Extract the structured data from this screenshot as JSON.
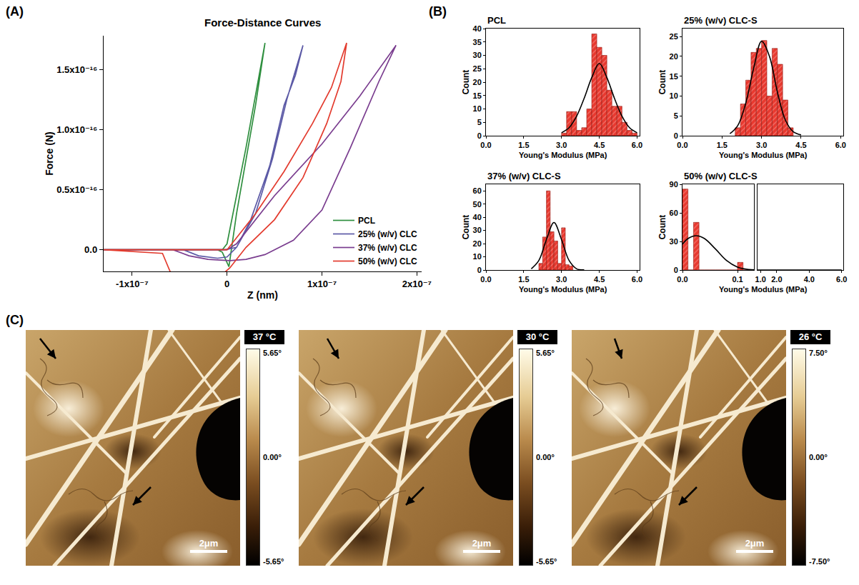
{
  "panel_labels": [
    "(A)",
    "(B)",
    "(C)"
  ],
  "chart_data": [
    {
      "type": "line",
      "title": "Force-Distance Curves",
      "x_label": "Z (nm)",
      "y_label": "Force (N)",
      "xlim": [
        -1.3e-07,
        2.05e-07
      ],
      "ylim": [
        -1.8e-17,
        1.78e-16
      ],
      "xticks": [
        {
          "value": -1e-07,
          "label": "-1x10⁻⁷"
        },
        0,
        {
          "value": 1e-07,
          "label": "1x10⁻⁷"
        },
        {
          "value": 2e-07,
          "label": "2x10⁻⁷"
        }
      ],
      "yticks": [
        {
          "value": 0,
          "label": "0.0"
        },
        {
          "value": 5e-17,
          "label": "0.5x10⁻¹⁶"
        },
        {
          "value": 1e-16,
          "label": "1.0x10⁻¹⁶"
        },
        {
          "value": 1.5e-16,
          "label": "1.5x10⁻¹⁶"
        }
      ],
      "legend": "lower right",
      "series": [
        {
          "name": "PCL",
          "color": "#2f8f3f",
          "x": [
            -1.3e-07,
            -5e-09,
            0,
            2e-08,
            4e-08,
            3e-08,
            1e-08,
            2e-09,
            -5e-09,
            -1e-08,
            -1.3e-07
          ],
          "values": [
            0,
            0,
            5e-18,
            8.5e-17,
            1.72e-16,
            1.2e-16,
            3e-17,
            -1.4e-17,
            -2e-18,
            0,
            0
          ]
        },
        {
          "name": "25% (w/v) CLC",
          "color": "#5c5aa6",
          "x": [
            -1.3e-07,
            -2e-09,
            1e-08,
            3e-08,
            4.8e-08,
            6.3e-08,
            8e-08,
            7.2e-08,
            6e-08,
            4.5e-08,
            2.5e-08,
            1e-08,
            0,
            -1e-08,
            -3e-08,
            -4.6e-08,
            -1.3e-07
          ],
          "values": [
            0,
            0,
            2e-18,
            3e-17,
            7.6e-17,
            1.25e-16,
            1.7e-16,
            1.45e-16,
            1.2e-16,
            7e-17,
            2.5e-17,
            2e-18,
            -6e-18,
            -7e-18,
            -5e-18,
            0,
            0
          ]
        },
        {
          "name": "37% (w/v) CLC",
          "color": "#7a3d8f",
          "x": [
            -1.3e-07,
            0,
            1e-08,
            5e-08,
            1e-07,
            1.4e-07,
            1.78e-07,
            1.6e-07,
            1.3e-07,
            1e-07,
            7e-08,
            4e-08,
            2e-08,
            3e-09,
            -2e-08,
            -4e-08,
            -5.7e-08,
            -1.3e-07
          ],
          "values": [
            0,
            0,
            5e-18,
            4.5e-17,
            8.8e-17,
            1.28e-16,
            1.7e-16,
            1.4e-16,
            8.5e-17,
            3.3e-17,
            8e-18,
            -4e-18,
            -8e-18,
            -9e-18,
            -8e-18,
            -5e-18,
            0,
            0
          ]
        },
        {
          "name": "50% (w/v) CLC",
          "color": "#e33b2e",
          "x": [
            -1.3e-07,
            0,
            3e-08,
            6e-08,
            9e-08,
            1.1e-07,
            1.26e-07,
            1.2e-07,
            1.05e-07,
            8e-08,
            5e-08,
            2e-08,
            3e-09,
            -1e-08,
            -3e-08,
            -5e-08,
            -6e-08,
            -6.8e-08,
            -1.3e-07
          ],
          "values": [
            0,
            0,
            3e-17,
            6.5e-17,
            1.05e-16,
            1.35e-16,
            1.72e-16,
            1.4e-16,
            1.05e-16,
            6e-17,
            2.5e-17,
            2e-18,
            -1.5e-17,
            -2.4e-17,
            -2.6e-17,
            -2.5e-17,
            -1.8e-17,
            -3e-18,
            0
          ]
        }
      ]
    },
    {
      "type": "histogram",
      "title": "PCL",
      "x_label": "Young's Modulus (MPa)",
      "y_label": "Count",
      "color": "#e8392f",
      "bins": [
        3.0,
        3.2,
        3.4,
        3.6,
        3.8,
        4.0,
        4.2,
        4.4,
        4.6,
        4.8,
        5.0,
        5.2,
        5.4,
        5.6,
        5.8,
        6.0
      ],
      "counts": [
        1,
        9,
        9,
        2,
        3,
        10,
        38,
        33,
        30,
        17,
        11,
        11,
        5,
        2,
        1
      ],
      "fit": {
        "color": "#000000",
        "x": [
          3.0,
          3.3,
          3.6,
          3.9,
          4.2,
          4.5,
          4.8,
          5.1,
          5.4,
          5.7,
          6.0
        ],
        "values": [
          1.1,
          3,
          7.3,
          14,
          21.7,
          27,
          21.7,
          14,
          7.3,
          3,
          1.1
        ]
      },
      "xlim": [
        0,
        6.1
      ],
      "ylim": [
        0,
        40
      ],
      "xticks": [
        {
          "value": 0,
          "label": "0.0"
        },
        1.5,
        {
          "value": 3,
          "label": "3.0"
        },
        4.5,
        {
          "value": 6,
          "label": "6.0"
        }
      ],
      "yticks": [
        0,
        5,
        10,
        15,
        20,
        25,
        30,
        35,
        40
      ]
    },
    {
      "type": "histogram",
      "title": "25% (w/v) CLC-S",
      "x_label": "Young's Modulus (MPa)",
      "y_label": "Count",
      "color": "#e8392f",
      "bins": [
        2.0,
        2.2,
        2.4,
        2.6,
        2.8,
        3.0,
        3.2,
        3.4,
        3.6,
        3.8,
        4.0,
        4.2
      ],
      "counts": [
        2,
        8,
        14,
        21,
        22,
        24,
        10,
        22,
        18,
        9,
        2
      ],
      "fit": {
        "color": "#000000",
        "x": [
          1.8,
          2.1,
          2.4,
          2.7,
          3.0,
          3.3,
          3.6,
          3.9,
          4.2,
          4.5
        ],
        "values": [
          0.5,
          2.6,
          8.2,
          17,
          23.8,
          20,
          11,
          4,
          1,
          0.2
        ]
      },
      "xlim": [
        0,
        6.1
      ],
      "ylim": [
        0,
        27
      ],
      "xticks": [
        {
          "value": 0,
          "label": "0.0"
        },
        1.5,
        {
          "value": 3,
          "label": "3.0"
        },
        4.5,
        {
          "value": 6,
          "label": "6.0"
        }
      ],
      "yticks": [
        0,
        5,
        10,
        15,
        20,
        25
      ]
    },
    {
      "type": "histogram",
      "title": "37% (w/v) CLC-S",
      "x_label": "Young's Modulus (MPa)",
      "y_label": "Count",
      "color": "#e8392f",
      "bins": [
        2.1,
        2.25,
        2.4,
        2.55,
        2.7,
        2.85,
        3.0,
        3.15,
        3.3,
        3.45
      ],
      "counts": [
        5,
        25,
        60,
        29,
        22,
        5,
        32,
        4,
        3
      ],
      "fit": {
        "color": "#000000",
        "x": [
          1.8,
          2.1,
          2.4,
          2.7,
          3.0,
          3.3,
          3.6,
          3.9
        ],
        "values": [
          0.9,
          7.2,
          23,
          36,
          23,
          7.2,
          0.9,
          0.05
        ]
      },
      "xlim": [
        0,
        6.1
      ],
      "ylim": [
        0,
        65
      ],
      "xticks": [
        {
          "value": 0,
          "label": "0.0"
        },
        1.5,
        {
          "value": 3,
          "label": "3.0"
        },
        4.5,
        {
          "value": 6,
          "label": "6.0"
        }
      ],
      "yticks": [
        0,
        10,
        20,
        30,
        40,
        50,
        60
      ]
    },
    {
      "type": "histogram",
      "title": "50% (w/v) CLC-S",
      "x_label": "Young's Modulus (MPa)",
      "y_label": "Count",
      "color": "#e8392f",
      "bins": [
        0,
        0.01,
        0.02,
        0.03,
        0.04,
        0.05,
        0.06,
        0.07,
        0.08,
        0.09,
        0.1,
        0.11,
        0.12,
        0.13
      ],
      "counts": [
        85,
        0,
        50,
        0,
        0,
        0,
        0,
        0,
        0,
        0,
        8,
        0,
        0
      ],
      "fit": {
        "color": "#000000",
        "x": [
          0,
          0.01,
          0.025,
          0.04,
          0.06,
          0.08,
          0.1,
          0.12,
          0.14,
          1.0,
          6.0
        ],
        "values": [
          27,
          33,
          36,
          33,
          22,
          10,
          3,
          0.5,
          0,
          0,
          0
        ]
      },
      "xlim": [
        [
          0,
          0.13
        ],
        [
          0.8,
          6.1
        ]
      ],
      "ylim": [
        0,
        90
      ],
      "xticks": [
        {
          "value": 0,
          "label": "0.0"
        },
        0.1,
        {
          "value": 1,
          "label": "1.0"
        },
        {
          "value": 2,
          "label": "2.0"
        },
        {
          "value": 4,
          "label": "4.0"
        },
        {
          "value": 6,
          "label": "6.0"
        }
      ],
      "yticks": [
        0,
        30,
        60,
        90
      ]
    }
  ],
  "images": [
    {
      "label": "37 °C",
      "scale_bar": "2μm",
      "colorbar": {
        "range": [
          -5.65,
          5.65
        ],
        "ticks": [
          {
            "value": 5.65,
            "label": "5.65°"
          },
          {
            "value": 0,
            "label": "0.00°"
          },
          {
            "value": -5.65,
            "label": "-5.65°"
          }
        ]
      }
    },
    {
      "label": "30 °C",
      "scale_bar": "2μm",
      "colorbar": {
        "range": [
          -5.65,
          5.65
        ],
        "ticks": [
          {
            "value": 5.65,
            "label": "5.65°"
          },
          {
            "value": 0,
            "label": "0.00°"
          },
          {
            "value": -5.65,
            "label": "-5.65°"
          }
        ]
      }
    },
    {
      "label": "26 °C",
      "scale_bar": "2μm",
      "colorbar": {
        "range": [
          -7.5,
          7.5
        ],
        "ticks": [
          {
            "value": 7.5,
            "label": "7.50°"
          },
          {
            "value": 0,
            "label": "0.00°"
          },
          {
            "value": -7.5,
            "label": "-7.50°"
          }
        ]
      }
    }
  ]
}
